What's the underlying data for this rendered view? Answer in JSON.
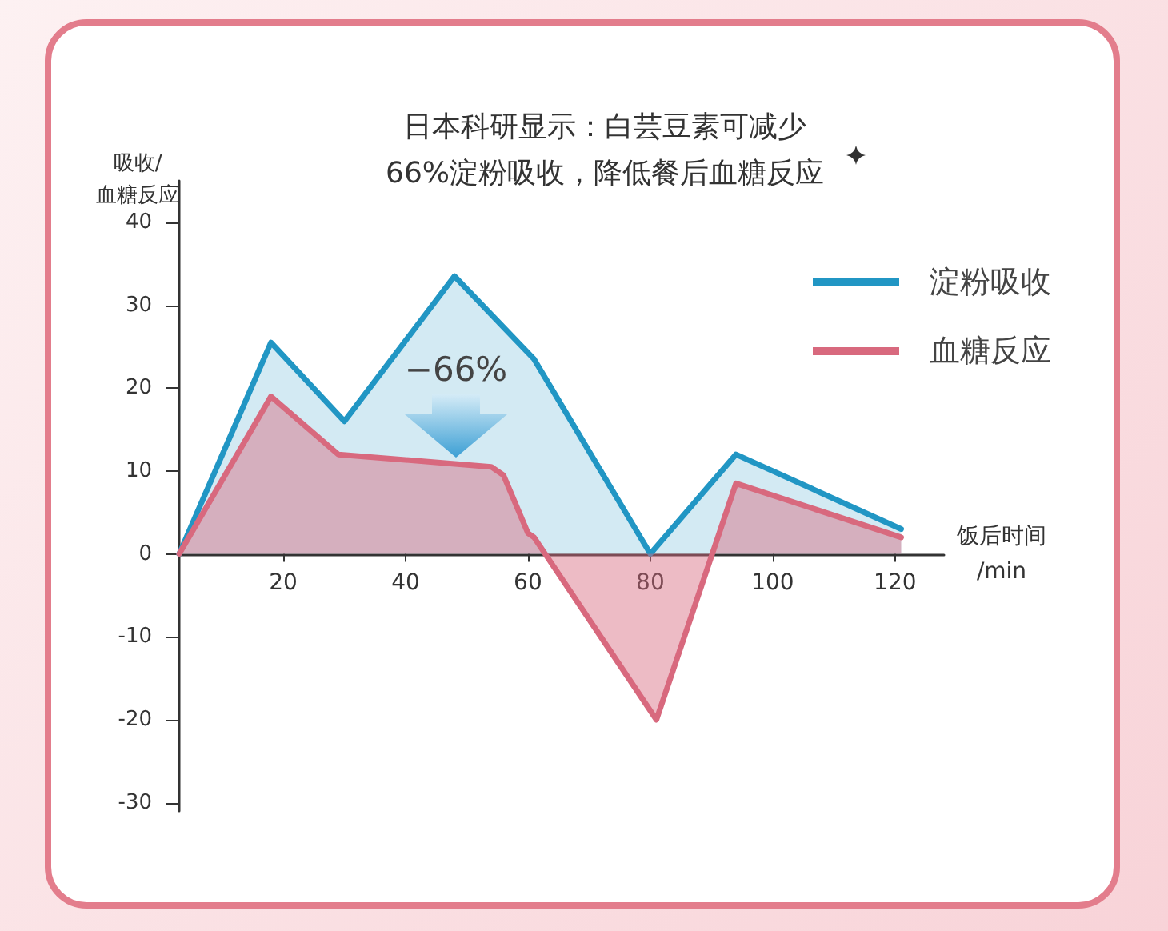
{
  "chart_data": {
    "type": "area",
    "title": "日本科研显示：白芸豆素可减少\n66%淀粉吸收，降低餐后血糖反应",
    "xlabel": "饭后时间\n/min",
    "ylabel": "吸收/\n血糖反应",
    "annotations": [
      "−66%"
    ],
    "xlim": [
      3,
      128
    ],
    "xticks": [
      20,
      40,
      60,
      80,
      100,
      120
    ],
    "ylim": [
      -31,
      45
    ],
    "yticks": [
      -30,
      -20,
      -10,
      0,
      10,
      20,
      30,
      40
    ],
    "legend": "top right",
    "marker": "none",
    "series": [
      {
        "name": "淀粉吸收",
        "color": "#2196c4",
        "x": [
          3,
          18,
          30,
          48,
          61,
          80,
          94,
          121
        ],
        "values": [
          0,
          25.5,
          16,
          33.5,
          23.5,
          0,
          12,
          3
        ]
      },
      {
        "name": "血糖反应",
        "color": "#d8697e",
        "x": [
          3,
          18,
          29,
          54,
          56,
          60,
          61,
          81,
          94,
          121
        ],
        "values": [
          0,
          19,
          12,
          10.5,
          9.5,
          2.5,
          2,
          -20,
          8.5,
          2
        ]
      }
    ]
  }
}
